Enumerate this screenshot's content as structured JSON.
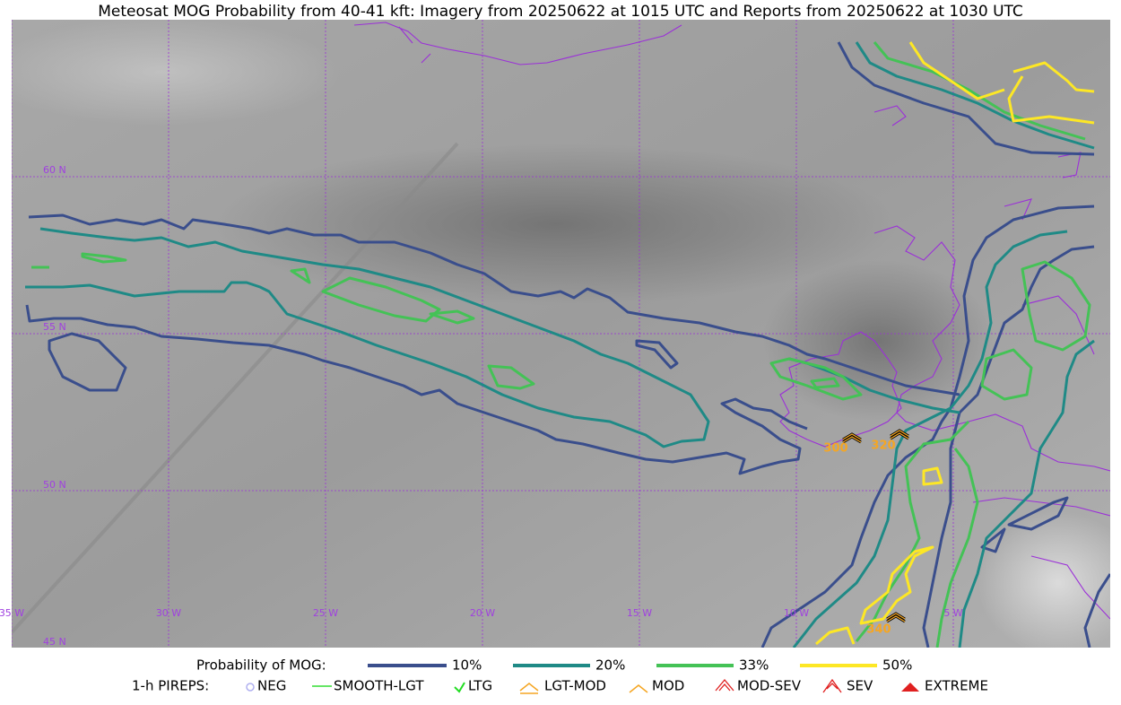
{
  "title": "Meteosat MOG Probability from 40-41 kft: Imagery from 20250622 at 1015 UTC and Reports from 20250622 at 1030 UTC",
  "map": {
    "lat_labels": [
      "60 N",
      "55 N",
      "50 N",
      "45 N"
    ],
    "lon_labels": [
      "35 W",
      "30 W",
      "25 W",
      "20 W",
      "15 W",
      "10 W",
      "5 W"
    ],
    "pireps": [
      {
        "label": "300"
      },
      {
        "label": "320"
      },
      {
        "label": "340"
      }
    ]
  },
  "legend": {
    "probability_title": "Probability of MOG:",
    "levels": [
      {
        "label": "10%",
        "color": "#3a4e8c"
      },
      {
        "label": "20%",
        "color": "#1f8a86"
      },
      {
        "label": "33%",
        "color": "#44c256"
      },
      {
        "label": "50%",
        "color": "#fde725"
      }
    ],
    "pireps_title": "1-h PIREPS:",
    "pirep_types": [
      "NEG",
      "SMOOTH-LGT",
      "LTG",
      "LGT-MOD",
      "MOD",
      "MOD-SEV",
      "SEV",
      "EXTREME"
    ]
  }
}
